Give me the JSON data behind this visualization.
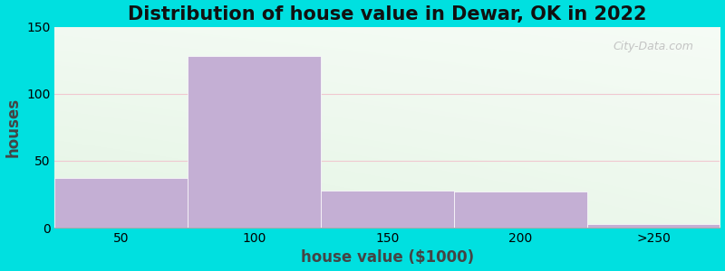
{
  "title": "Distribution of house value in Dewar, OK in 2022",
  "xlabel": "house value ($1000)",
  "ylabel": "houses",
  "bar_labels": [
    "50",
    "100",
    "150",
    "200",
    ">250"
  ],
  "bar_heights": [
    37,
    128,
    28,
    27,
    3
  ],
  "bar_color": "#c4afd4",
  "ylim": [
    0,
    150
  ],
  "yticks": [
    0,
    50,
    100,
    150
  ],
  "background_outer": "#00e0e0",
  "bg_left_color": "#d0f0d0",
  "bg_right_color": "#f0f8f0",
  "bg_top_color": "#ffffff",
  "grid_color": "#f0c8d0",
  "title_fontsize": 15,
  "axis_label_fontsize": 12,
  "tick_fontsize": 10,
  "watermark_text": "City-Data.com"
}
